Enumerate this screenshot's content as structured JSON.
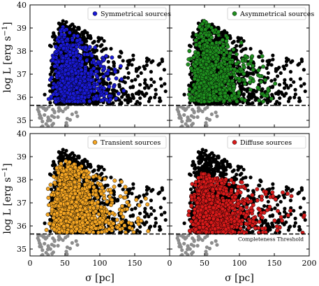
{
  "chart_data": {
    "type": "scatter",
    "panel_layout": "2x2 grid with shared axes",
    "xlabel": "σ [pc]",
    "ylabel_prefix": "log L [erg s",
    "ylabel_sup": "−1",
    "ylabel_suffix": "]",
    "xlim": [
      0,
      200
    ],
    "ylim": [
      34.7,
      40
    ],
    "xticks": [
      "0",
      "50",
      "100",
      "150",
      "200"
    ],
    "yticks": [
      "35",
      "36",
      "37",
      "38",
      "39",
      "40"
    ],
    "completeness_threshold": 35.65,
    "threshold_label": "Completeness Threshold",
    "threshold_style": "black dashed line",
    "grey_color": "#8c8c8c",
    "black_color": "#000000",
    "cloud_description": {
      "black_all_sources": {
        "x_range": [
          10,
          195
        ],
        "y_range": [
          35.7,
          39.4
        ],
        "peak_x": 45,
        "peak_y": 39.4
      },
      "grey_below_threshold": {
        "x_range": [
          10,
          70
        ],
        "y_range": [
          34.7,
          35.6
        ],
        "count_approx": 45
      }
    },
    "panels": [
      {
        "name": "Symmetrical sources",
        "color": "#1a1ad6",
        "highlight_extent": {
          "x_range": [
            25,
            135
          ],
          "y_range": [
            35.8,
            39.1
          ]
        }
      },
      {
        "name": "Asymmetrical sources",
        "color": "#1f8f1f",
        "highlight_extent": {
          "x_range": [
            25,
            160
          ],
          "y_range": [
            35.8,
            39.4
          ]
        }
      },
      {
        "name": "Transient sources",
        "color": "#f5a623",
        "highlight_extent": {
          "x_range": [
            15,
            190
          ],
          "y_range": [
            35.7,
            38.9
          ]
        }
      },
      {
        "name": "Diffuse sources",
        "color": "#d91a1a",
        "highlight_extent": {
          "x_range": [
            10,
            195
          ],
          "y_range": [
            35.7,
            38.3
          ]
        }
      }
    ]
  }
}
